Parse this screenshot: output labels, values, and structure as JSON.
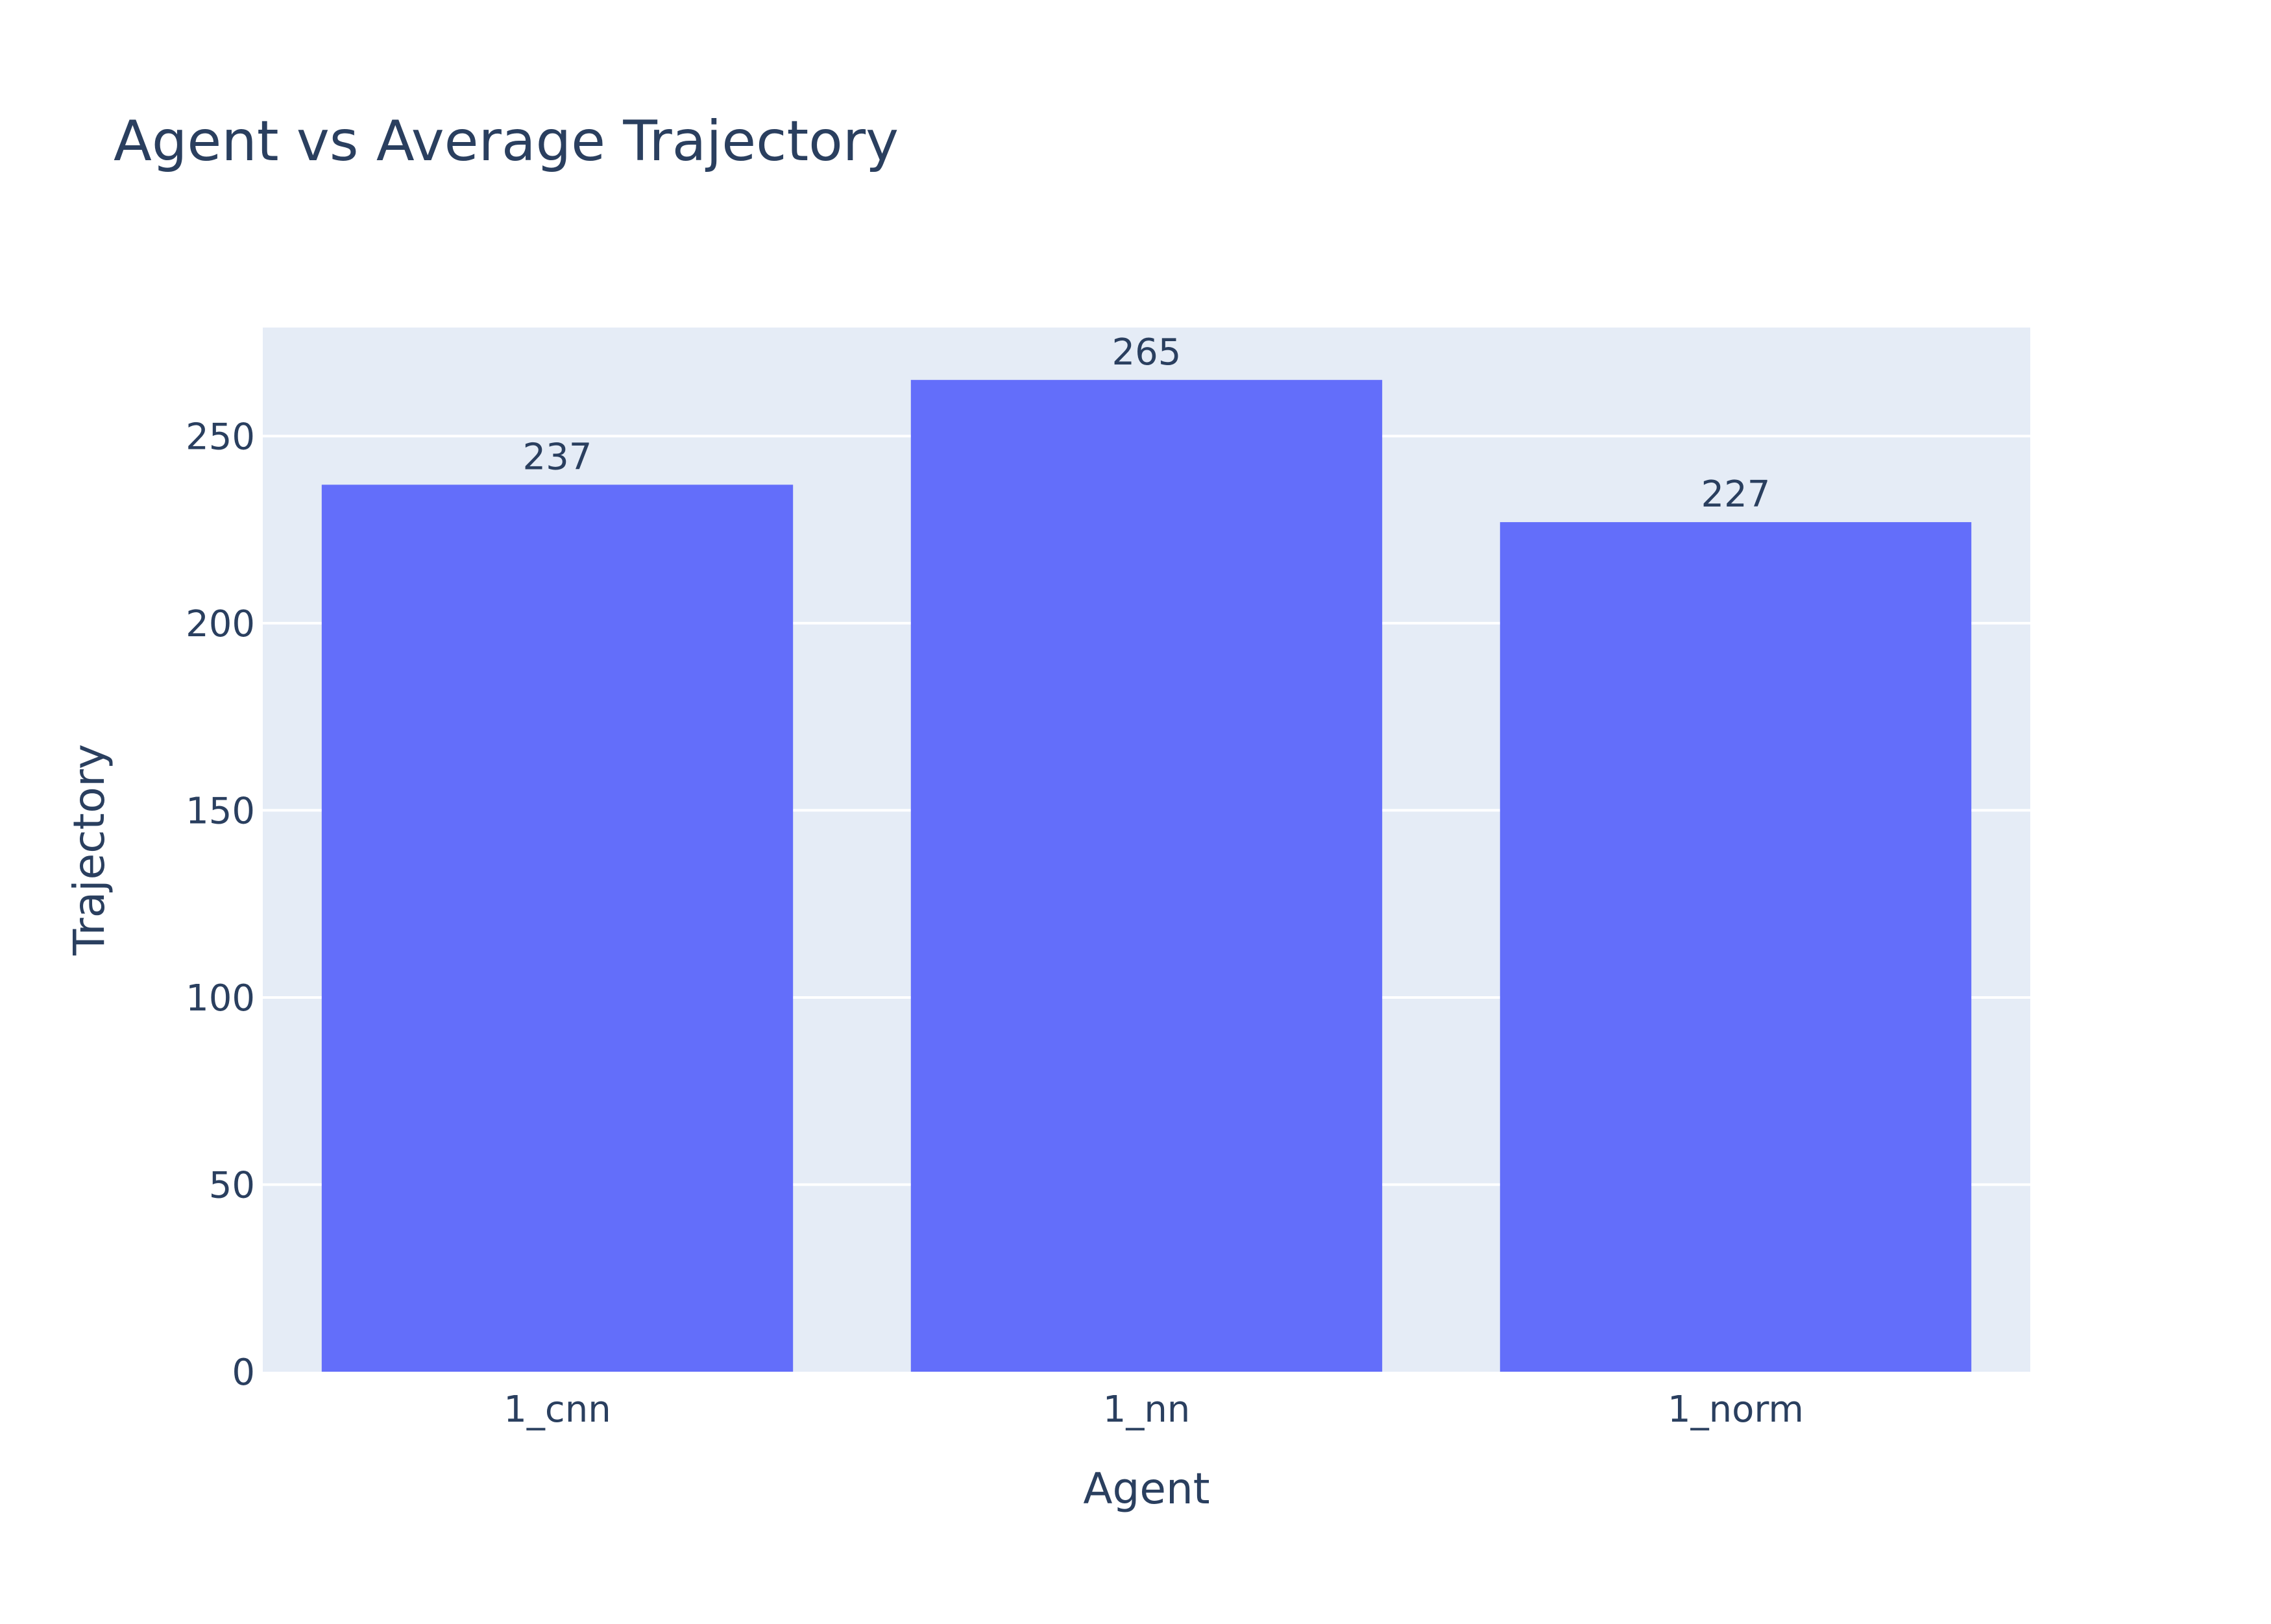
{
  "chart_data": {
    "type": "bar",
    "title": "Agent vs Average Trajectory",
    "xlabel": "Agent",
    "ylabel": "Trajectory",
    "categories": [
      "1_cnn",
      "1_nn",
      "1_norm"
    ],
    "values": [
      237,
      265,
      227
    ],
    "data_labels": [
      "237",
      "265",
      "227"
    ],
    "ylim": [
      0,
      279
    ],
    "yticks": [
      0,
      50,
      100,
      150,
      200,
      250
    ],
    "grid": true,
    "legend": "none",
    "colors": {
      "bar": "#636efa",
      "plot_background": "#e5ecf6",
      "gridline": "#ffffff",
      "text": "#2a3f5f"
    }
  }
}
